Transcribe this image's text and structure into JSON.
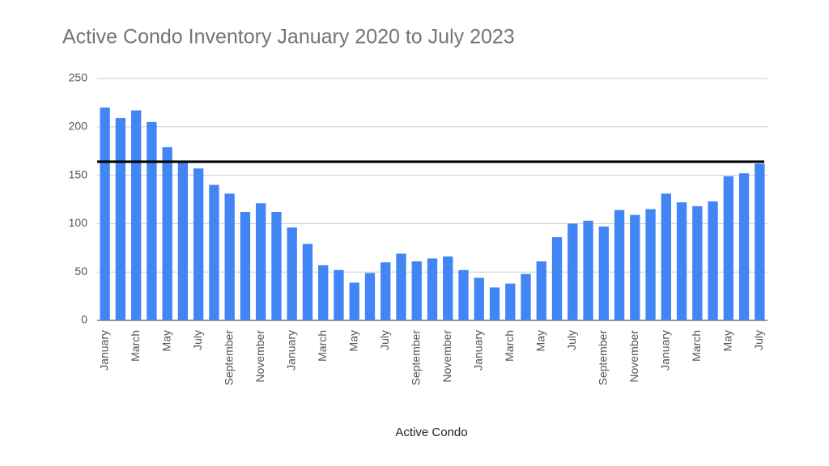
{
  "chart_data": {
    "type": "bar",
    "title": "Active Condo Inventory January 2020 to July 2023",
    "x_label": "Active Condo",
    "categories": [
      "January",
      null,
      "March",
      null,
      "May",
      null,
      "July",
      null,
      "September",
      null,
      "November",
      null,
      "January",
      null,
      "March",
      null,
      "May",
      null,
      "July",
      null,
      "September",
      null,
      "November",
      null,
      "January",
      null,
      "March",
      null,
      "May",
      null,
      "July",
      null,
      "September",
      null,
      "November",
      null,
      "January",
      null,
      "March",
      null,
      "May",
      null,
      "July"
    ],
    "values": [
      220,
      209,
      217,
      205,
      179,
      163,
      157,
      140,
      131,
      112,
      121,
      112,
      96,
      79,
      57,
      52,
      39,
      49,
      60,
      69,
      61,
      64,
      66,
      52,
      44,
      34,
      38,
      48,
      61,
      86,
      100,
      103,
      97,
      114,
      109,
      115,
      131,
      122,
      118,
      123,
      149,
      152,
      162
    ],
    "color": "#4285f4",
    "ylim": [
      0,
      250
    ],
    "yticks": [
      0,
      50,
      100,
      150,
      200,
      250
    ],
    "grid": true,
    "reference_line": {
      "value": 164,
      "color": "#000000"
    }
  }
}
